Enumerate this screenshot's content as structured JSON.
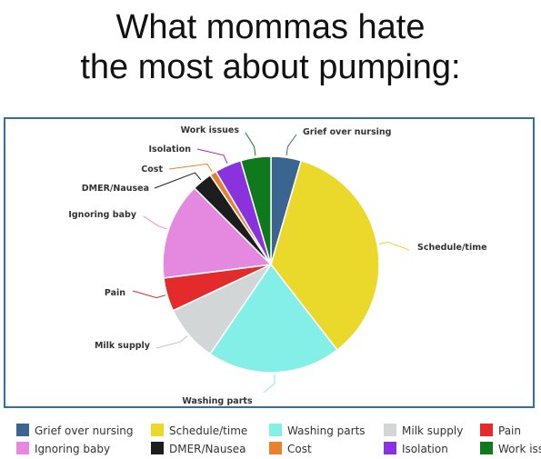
{
  "title_lines": [
    "What mommas hate",
    "the most about pumping:"
  ],
  "chart_data": {
    "type": "pie",
    "title": "What mommas hate the most about pumping:",
    "start_angle_deg": 0,
    "direction": "clockwise",
    "slices": [
      {
        "label": "Grief over nursing",
        "value": 4.5,
        "color": "#3b6490"
      },
      {
        "label": "Schedule/time",
        "value": 35.0,
        "color": "#ead92b"
      },
      {
        "label": "Washing parts",
        "value": 20.0,
        "color": "#84efe6"
      },
      {
        "label": "Milk supply",
        "value": 8.5,
        "color": "#d3d6d6"
      },
      {
        "label": "Pain",
        "value": 5.0,
        "color": "#e32b2b"
      },
      {
        "label": "Ignoring baby",
        "value": 14.5,
        "color": "#e588e0"
      },
      {
        "label": "DMER/Nausea",
        "value": 3.0,
        "color": "#1d1d1d"
      },
      {
        "label": "Cost",
        "value": 1.0,
        "color": "#e8812e"
      },
      {
        "label": "Isolation",
        "value": 4.0,
        "color": "#8b32df"
      },
      {
        "label": "Work issues",
        "value": 4.5,
        "color": "#0e7a1c"
      }
    ],
    "legend_position": "bottom"
  }
}
